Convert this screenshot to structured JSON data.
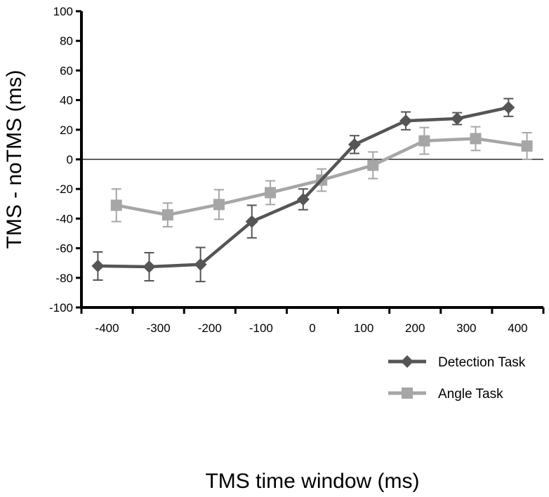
{
  "chart_data": {
    "type": "line",
    "title": "",
    "xlabel": "TMS time window (ms)",
    "ylabel": "TMS - noTMS (ms)",
    "ylim": [
      -100,
      100
    ],
    "y_ticks": [
      -100,
      -80,
      -60,
      -40,
      -20,
      0,
      20,
      40,
      60,
      80,
      100
    ],
    "categories": [
      "-400",
      "-300",
      "-200",
      "-100",
      "0",
      "100",
      "200",
      "300",
      "400"
    ],
    "reference_line_y": 0,
    "legend_position": "bottom-right",
    "series": [
      {
        "name": "Detection Task",
        "color": "#555555",
        "marker": "diamond",
        "x_offset": -0.18,
        "values": [
          -72,
          -72.5,
          -71,
          -42,
          -27,
          10,
          26,
          27.5,
          35
        ],
        "errors": [
          9.5,
          9.5,
          11.5,
          11,
          7,
          6,
          6,
          4,
          6
        ]
      },
      {
        "name": "Angle Task",
        "color": "#a6a6a6",
        "marker": "square",
        "x_offset": 0.18,
        "values": [
          -31,
          -37.5,
          -30.5,
          -22.5,
          -14,
          -4,
          12.5,
          14,
          9
        ],
        "errors": [
          11,
          8,
          10,
          8,
          7.5,
          9,
          9,
          8,
          9
        ]
      }
    ]
  }
}
